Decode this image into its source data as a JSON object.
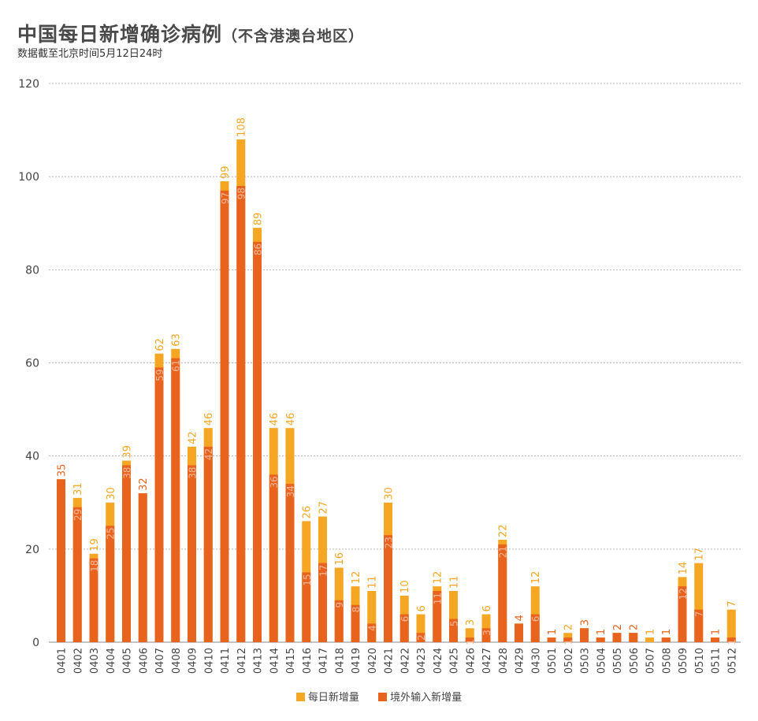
{
  "header": {
    "title": "中国每日新增确诊病例",
    "title_suffix": "（不含港澳台地区）",
    "note": "数据截至北京时间5月12日24时"
  },
  "colors": {
    "total": "#f5a623",
    "imported": "#e8641e",
    "grid": "#b5b5b5",
    "axis_text": "#444444",
    "imported_label": "#f3b79a"
  },
  "legend": {
    "total_label": "每日新增量",
    "imported_label": "境外输入新增量"
  },
  "chart_data": {
    "type": "bar",
    "stacked_overlay": true,
    "title": "",
    "xlabel": "",
    "ylabel": "",
    "ylim": [
      0,
      120
    ],
    "yticks": [
      0,
      20,
      40,
      60,
      80,
      100,
      120
    ],
    "grid": true,
    "legend_position": "bottom-center",
    "categories": [
      "0401",
      "0402",
      "0403",
      "0404",
      "0405",
      "0406",
      "0407",
      "0408",
      "0409",
      "0410",
      "0411",
      "0412",
      "0413",
      "0414",
      "0415",
      "0416",
      "0417",
      "0418",
      "0419",
      "0420",
      "0421",
      "0422",
      "0423",
      "0424",
      "0425",
      "0426",
      "0427",
      "0428",
      "0429",
      "0430",
      "0501",
      "0502",
      "0503",
      "0504",
      "0505",
      "0506",
      "0507",
      "0508",
      "0509",
      "0510",
      "0511",
      "0512"
    ],
    "series": [
      {
        "name": "每日新增量",
        "values": [
          35,
          31,
          19,
          30,
          39,
          32,
          62,
          63,
          42,
          46,
          99,
          108,
          89,
          46,
          46,
          26,
          27,
          16,
          12,
          11,
          30,
          10,
          6,
          12,
          11,
          3,
          6,
          22,
          4,
          12,
          1,
          2,
          3,
          1,
          2,
          2,
          1,
          1,
          14,
          17,
          1,
          7
        ]
      },
      {
        "name": "境外输入新增量",
        "values": [
          35,
          29,
          18,
          25,
          38,
          32,
          59,
          61,
          38,
          42,
          97,
          98,
          86,
          36,
          34,
          15,
          17,
          9,
          8,
          4,
          23,
          6,
          2,
          11,
          5,
          1,
          3,
          21,
          4,
          6,
          1,
          1,
          3,
          1,
          2,
          2,
          0,
          1,
          12,
          7,
          1,
          1
        ]
      }
    ]
  }
}
